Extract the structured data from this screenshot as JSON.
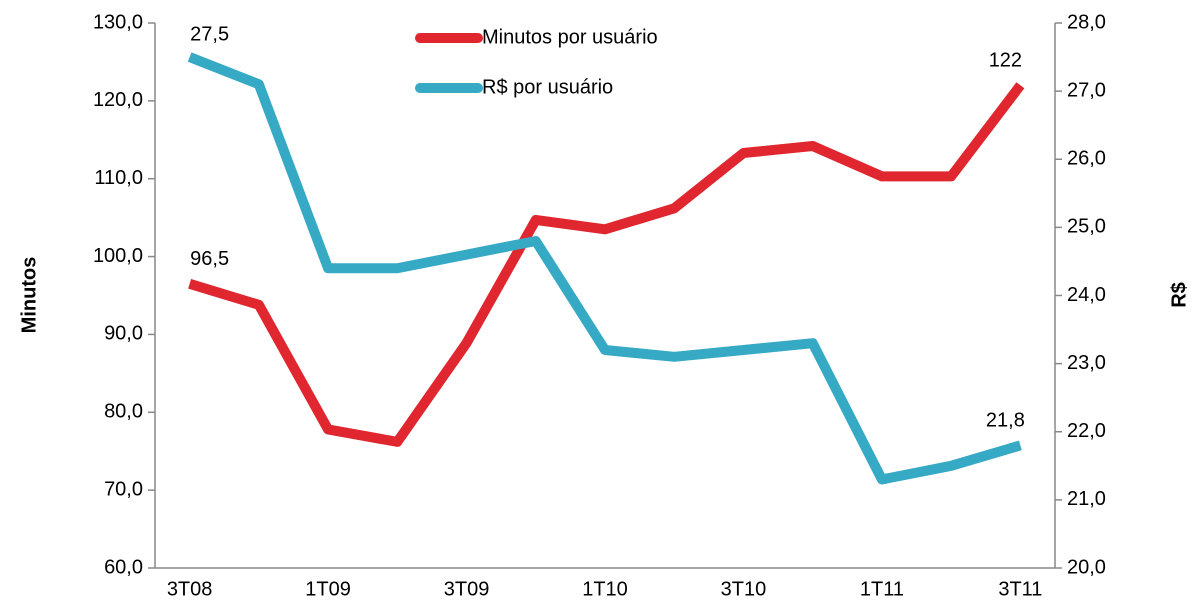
{
  "chart_data": {
    "type": "line",
    "categories": [
      "3T08",
      null,
      "1T09",
      null,
      "3T09",
      null,
      "1T10",
      null,
      "3T10",
      null,
      "1T11",
      null,
      "3T11"
    ],
    "series": [
      {
        "name": "Minutos por usuário",
        "color": "#e0262e",
        "axis": "y",
        "values": [
          96.5,
          93.8,
          77.8,
          76.2,
          88.9,
          104.7,
          103.5,
          106.2,
          113.3,
          114.2,
          110.3,
          110.3,
          122
        ],
        "value_labels": [
          "96,5",
          null,
          null,
          null,
          null,
          null,
          null,
          null,
          null,
          null,
          null,
          null,
          "122"
        ]
      },
      {
        "name": "R$ por usuário",
        "color": "#36a9c5",
        "axis": "y2",
        "values": [
          27.5,
          27.1,
          24.4,
          24.4,
          24.6,
          24.8,
          23.2,
          23.1,
          23.2,
          23.3,
          21.3,
          21.5,
          21.8
        ],
        "value_labels": [
          "27,5",
          null,
          null,
          null,
          null,
          null,
          null,
          null,
          null,
          null,
          null,
          null,
          "21,8"
        ]
      }
    ],
    "ylabel": "Minutos",
    "y2label": "R$",
    "ylim": [
      60,
      130
    ],
    "yticks": [
      {
        "value": 60,
        "label": "60,0"
      },
      {
        "value": 70,
        "label": "70,0"
      },
      {
        "value": 80,
        "label": "80,0"
      },
      {
        "value": 90,
        "label": "90,0"
      },
      {
        "value": 100,
        "label": "100,0"
      },
      {
        "value": 110,
        "label": "110,0"
      },
      {
        "value": 120,
        "label": "120,0"
      },
      {
        "value": 130,
        "label": "130,0"
      }
    ],
    "y2lim": [
      20,
      28
    ],
    "y2ticks": [
      {
        "value": 20,
        "label": "20,0"
      },
      {
        "value": 21,
        "label": "21,0"
      },
      {
        "value": 22,
        "label": "22,0"
      },
      {
        "value": 23,
        "label": "23,0"
      },
      {
        "value": 24,
        "label": "24,0"
      },
      {
        "value": 25,
        "label": "25,0"
      },
      {
        "value": 26,
        "label": "26,0"
      },
      {
        "value": 27,
        "label": "27,0"
      },
      {
        "value": 28,
        "label": "28,0"
      }
    ],
    "legend": "top"
  }
}
